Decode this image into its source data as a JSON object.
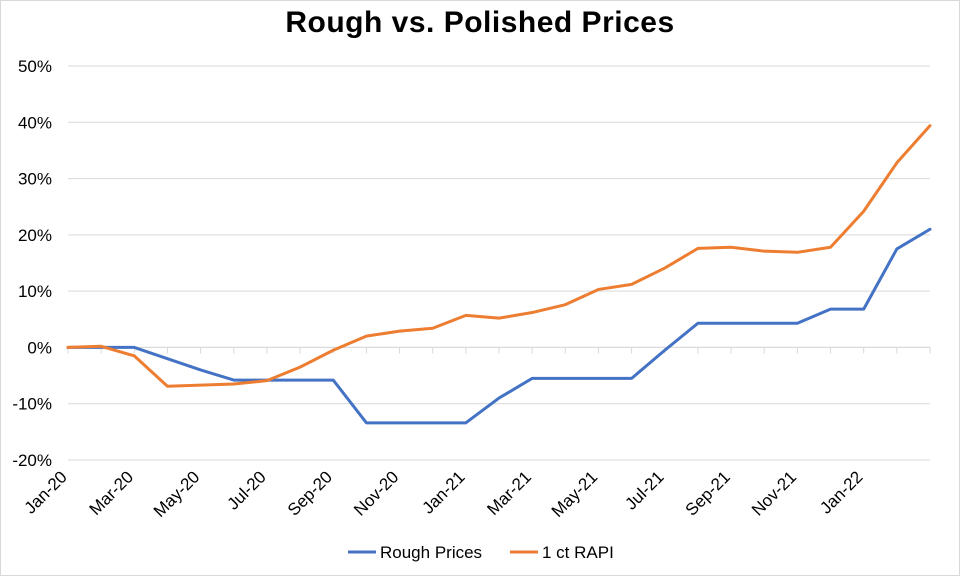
{
  "chart_data": {
    "type": "line",
    "title": "Rough vs. Polished Prices",
    "xlabel": "",
    "ylabel": "",
    "x": [
      "Jan-20",
      "Feb-20",
      "Mar-20",
      "Apr-20",
      "May-20",
      "Jun-20",
      "Jul-20",
      "Aug-20",
      "Sep-20",
      "Oct-20",
      "Nov-20",
      "Dec-20",
      "Jan-21",
      "Feb-21",
      "Mar-21",
      "Apr-21",
      "May-21",
      "Jun-21",
      "Jul-21",
      "Aug-21",
      "Sep-21",
      "Oct-21",
      "Nov-21",
      "Dec-21",
      "Jan-22",
      "Feb-22",
      "Mar-22"
    ],
    "x_tick_labels": [
      "Jan-20",
      "Mar-20",
      "May-20",
      "Jul-20",
      "Sep-20",
      "Nov-20",
      "Jan-21",
      "Mar-21",
      "May-21",
      "Jul-21",
      "Sep-21",
      "Nov-21",
      "Jan-22"
    ],
    "y_ticks": [
      -20,
      -10,
      0,
      10,
      20,
      30,
      40,
      50
    ],
    "y_tick_labels": [
      "-20%",
      "-10%",
      "0%",
      "10%",
      "20%",
      "30%",
      "40%",
      "50%"
    ],
    "ylim": [
      -20,
      50
    ],
    "y_unit": "%",
    "grid": "horizontal",
    "legend_position": "bottom",
    "series": [
      {
        "name": "Rough Prices",
        "color": "#4472c4",
        "values": [
          0,
          0,
          0,
          -2,
          -4,
          -5.8,
          -5.8,
          -5.8,
          -5.8,
          -13.4,
          -13.4,
          -13.4,
          -13.4,
          -9,
          -5.5,
          -5.5,
          -5.5,
          -5.5,
          -0.5,
          4.3,
          4.3,
          4.3,
          4.3,
          6.8,
          6.8,
          17.5,
          21
        ]
      },
      {
        "name": "1 ct RAPI",
        "color": "#ed7d31",
        "values": [
          0,
          0.2,
          -1.5,
          -6.9,
          -6.7,
          -6.5,
          -5.9,
          -3.5,
          -0.5,
          2,
          2.9,
          3.4,
          5.7,
          5.2,
          6.2,
          7.6,
          10.3,
          11.2,
          14.1,
          17.6,
          17.8,
          17.1,
          16.9,
          17.8,
          24.2,
          32.8,
          39.4
        ]
      }
    ]
  }
}
